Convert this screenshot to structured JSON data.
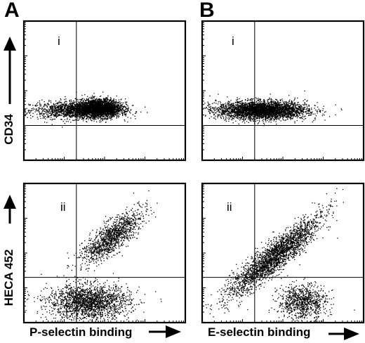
{
  "figure": {
    "panel_letters": [
      "A",
      "B"
    ],
    "y_axis_labels": [
      "CD34",
      "HECA 452"
    ],
    "x_axis_labels": [
      "P-selectin binding",
      "E-selectin binding"
    ],
    "quadrant_labels": [
      "i",
      "i",
      "ii",
      "ii"
    ]
  },
  "chart_data": [
    {
      "type": "scatter",
      "panel": "A",
      "row": "i",
      "xlabel": "P-selectin binding",
      "ylabel": "CD34",
      "scale": "log",
      "xlim": [
        1,
        10000
      ],
      "ylim": [
        1,
        10000
      ],
      "gates": {
        "x": 20,
        "y": 10
      },
      "clusters": [
        {
          "center_x": 18,
          "center_y": 28,
          "count": 1500,
          "spread_x": 0.55,
          "spread_y": 0.12
        },
        {
          "center_x": 70,
          "center_y": 32,
          "count": 2700,
          "spread_x": 0.28,
          "spread_y": 0.13
        }
      ]
    },
    {
      "type": "scatter",
      "panel": "B",
      "row": "i",
      "xlabel": "E-selectin binding",
      "ylabel": "CD34",
      "scale": "log",
      "xlim": [
        1,
        10000
      ],
      "ylim": [
        1,
        10000
      ],
      "gates": {
        "x": 20,
        "y": 10
      },
      "clusters": [
        {
          "center_x": 30,
          "center_y": 28,
          "count": 3600,
          "spread_x": 0.55,
          "spread_y": 0.13
        }
      ]
    },
    {
      "type": "scatter",
      "panel": "A",
      "row": "ii",
      "xlabel": "P-selectin binding",
      "ylabel": "HECA 452",
      "scale": "log",
      "xlim": [
        1,
        10000
      ],
      "ylim": [
        1,
        10000
      ],
      "gates": {
        "x": 20,
        "y": 20
      },
      "clusters": [
        {
          "center_x": 150,
          "center_y": 300,
          "count": 1300,
          "spread_x": 0.35,
          "spread_y": 0.35,
          "diagonal": true
        },
        {
          "center_x": 40,
          "center_y": 4,
          "count": 2000,
          "spread_x": 0.5,
          "spread_y": 0.25
        }
      ]
    },
    {
      "type": "scatter",
      "panel": "B",
      "row": "ii",
      "xlabel": "E-selectin binding",
      "ylabel": "HECA 452",
      "scale": "log",
      "xlim": [
        1,
        10000
      ],
      "ylim": [
        1,
        10000
      ],
      "gates": {
        "x": 20,
        "y": 20
      },
      "clusters": [
        {
          "center_x": 60,
          "center_y": 80,
          "count": 2600,
          "spread_x": 0.55,
          "spread_y": 0.55,
          "diagonal": true
        },
        {
          "center_x": 300,
          "center_y": 4,
          "count": 900,
          "spread_x": 0.3,
          "spread_y": 0.25
        }
      ]
    }
  ]
}
